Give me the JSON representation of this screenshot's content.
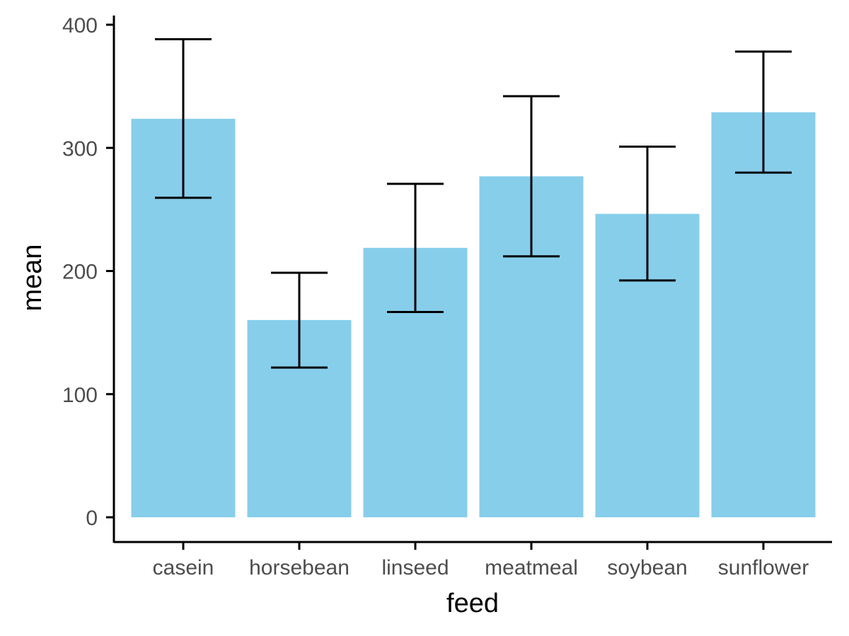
{
  "chart_data": {
    "type": "bar",
    "xlabel": "feed",
    "ylabel": "mean",
    "categories": [
      "casein",
      "horsebean",
      "linseed",
      "meatmeal",
      "soybean",
      "sunflower"
    ],
    "values": [
      323.6,
      160.2,
      218.8,
      276.9,
      246.4,
      328.9
    ],
    "error_lower": [
      259.5,
      121.6,
      166.7,
      211.9,
      192.3,
      279.9
    ],
    "error_upper": [
      388.2,
      198.6,
      270.8,
      342.0,
      301.0,
      378.2
    ],
    "ylim": [
      0,
      400
    ],
    "yticks": [
      0,
      100,
      200,
      300,
      400
    ],
    "grid": false,
    "legend": "none",
    "bar_color": "#87CEEB",
    "errorbar_color": "#000000"
  }
}
